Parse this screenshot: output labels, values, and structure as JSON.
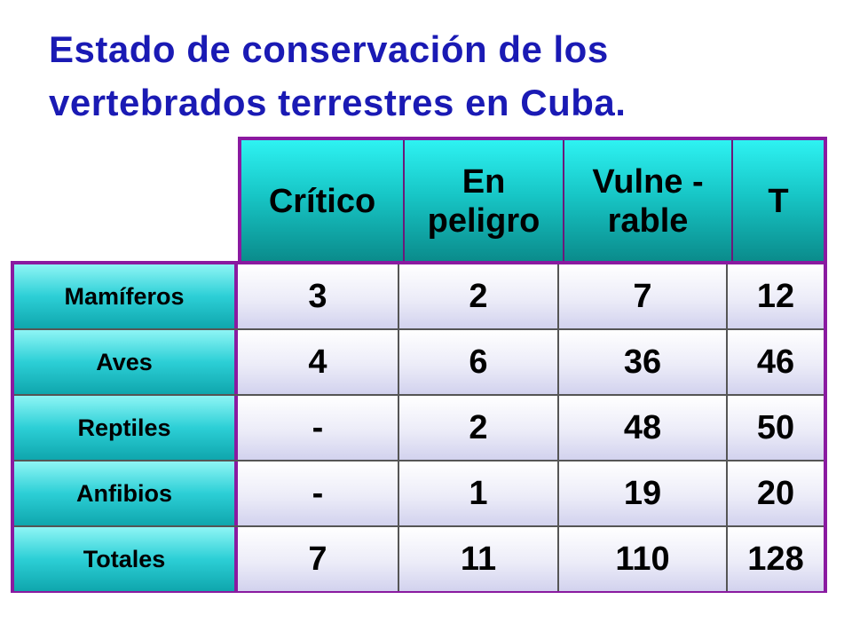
{
  "title": {
    "line1": "Estado de conservación de los",
    "line2": "vertebrados terrestres en Cuba."
  },
  "table": {
    "columns": [
      "Crítico",
      "En\npeligro",
      "Vulne -\nrable",
      "T"
    ],
    "rows": [
      {
        "label": "Mamíferos",
        "values": [
          "3",
          "2",
          "7",
          "12"
        ]
      },
      {
        "label": "Aves",
        "values": [
          "4",
          "6",
          "36",
          "46"
        ]
      },
      {
        "label": "Reptiles",
        "values": [
          "-",
          "2",
          "48",
          "50"
        ]
      },
      {
        "label": "Anfibios",
        "values": [
          "-",
          "1",
          "19",
          "20"
        ]
      },
      {
        "label": "Totales",
        "values": [
          "7",
          "11",
          "110",
          "128"
        ]
      }
    ]
  },
  "colors": {
    "title": "#1a1ab4",
    "border": "#8a1aa0",
    "header_fill": "#17c6c6",
    "row_label_fill": "#2ccfd6",
    "cell_fill": "#ececf8"
  }
}
